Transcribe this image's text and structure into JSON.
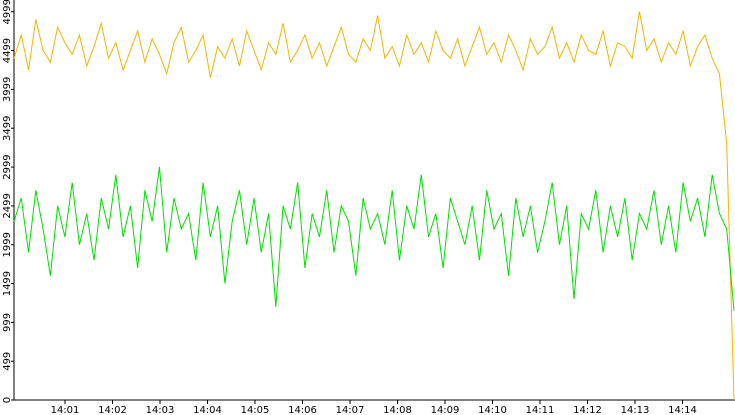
{
  "chart_data": {
    "type": "line",
    "x_labels": [
      "14:01",
      "14:02",
      "14:03",
      "14:04",
      "14:05",
      "14:06",
      "14:07",
      "14:08",
      "14:09",
      "14:10",
      "14:11",
      "14:12",
      "14:13",
      "14:14"
    ],
    "ylim": [
      0,
      5150
    ],
    "yticks": [
      0,
      499,
      999,
      1499,
      1999,
      2499,
      2999,
      3499,
      3999,
      4499,
      4999
    ],
    "series": [
      {
        "color": "#f2b600",
        "values": [
          4400,
          4700,
          4250,
          4900,
          4500,
          4350,
          4800,
          4600,
          4450,
          4700,
          4300,
          4550,
          4850,
          4400,
          4600,
          4250,
          4500,
          4750,
          4350,
          4650,
          4450,
          4200,
          4600,
          4800,
          4350,
          4500,
          4700,
          4150,
          4550,
          4400,
          4650,
          4300,
          4750,
          4500,
          4250,
          4600,
          4450,
          4850,
          4350,
          4500,
          4700,
          4400,
          4600,
          4300,
          4550,
          4800,
          4450,
          4350,
          4650,
          4500,
          4950,
          4400,
          4550,
          4300,
          4700,
          4450,
          4600,
          4350,
          4750,
          4500,
          4400,
          4650,
          4300,
          4550,
          4800,
          4450,
          4600,
          4350,
          4700,
          4500,
          4250,
          4650,
          4450,
          4550,
          4800,
          4400,
          4600,
          4350,
          4700,
          4500,
          4450,
          4750,
          4300,
          4600,
          4550,
          4400,
          5000,
          4500,
          4650,
          4350,
          4600,
          4450,
          4750,
          4300,
          4550,
          4700,
          4400,
          4200,
          3300,
          0
        ]
      },
      {
        "color": "#00e000",
        "values": [
          2300,
          2600,
          1900,
          2700,
          2200,
          1600,
          2500,
          2100,
          2800,
          2000,
          2400,
          1800,
          2600,
          2200,
          2900,
          2100,
          2500,
          1700,
          2700,
          2300,
          3000,
          1900,
          2600,
          2200,
          2400,
          1800,
          2800,
          2100,
          2500,
          1500,
          2300,
          2700,
          2000,
          2600,
          1900,
          2400,
          1200,
          2500,
          2200,
          2800,
          1700,
          2400,
          2100,
          2700,
          1900,
          2500,
          2300,
          1600,
          2600,
          2200,
          2400,
          2000,
          2700,
          1800,
          2500,
          2200,
          2900,
          2100,
          2400,
          1700,
          2600,
          2300,
          2000,
          2500,
          1800,
          2700,
          2200,
          2400,
          1600,
          2600,
          2100,
          2500,
          1900,
          2300,
          2800,
          2000,
          2500,
          1300,
          2400,
          2200,
          2700,
          1900,
          2500,
          2100,
          2600,
          1800,
          2400,
          2200,
          2700,
          2000,
          2500,
          1900,
          2800,
          2300,
          2600,
          2100,
          2900,
          2400,
          2200,
          1150
        ]
      }
    ]
  }
}
